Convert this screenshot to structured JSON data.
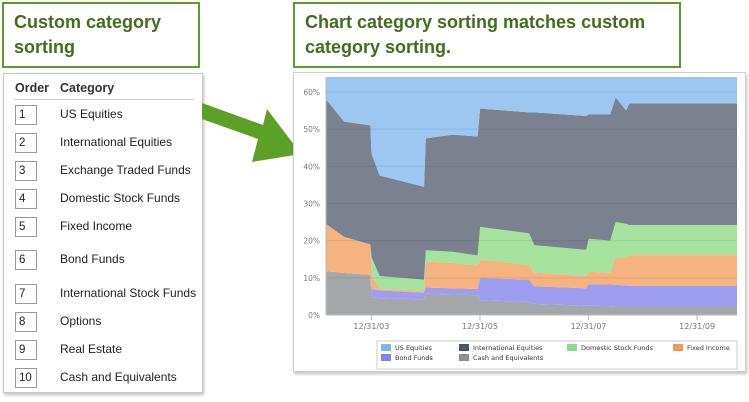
{
  "callouts": {
    "left": "Custom category sorting",
    "right": "Chart category sorting matches custom category sorting."
  },
  "table": {
    "headers": {
      "order": "Order",
      "category": "Category"
    },
    "rows": [
      {
        "order": "1",
        "category": "US Equities"
      },
      {
        "order": "2",
        "category": "International Equities"
      },
      {
        "order": "3",
        "category": "Exchange Traded Funds"
      },
      {
        "order": "4",
        "category": "Domestic Stock Funds"
      },
      {
        "order": "5",
        "category": "Fixed Income"
      },
      {
        "order": "6",
        "category": "Bond Funds"
      },
      {
        "order": "7",
        "category": "International Stock Funds"
      },
      {
        "order": "8",
        "category": "Options"
      },
      {
        "order": "9",
        "category": "Real Estate"
      },
      {
        "order": "10",
        "category": "Cash and Equivalents"
      }
    ]
  },
  "colors": {
    "accent_green": "#5b9b2b",
    "callout_text": "#3f6e1e"
  },
  "chart_data": {
    "type": "area",
    "stacked": true,
    "ylim": [
      0,
      64
    ],
    "yticks": [
      "0%",
      "10%",
      "20%",
      "30%",
      "40%",
      "50%",
      "60%"
    ],
    "ytick_values": [
      0,
      10,
      20,
      30,
      40,
      50,
      60
    ],
    "xlim": [
      "2003-03-01",
      "2010-09-25"
    ],
    "xticks": [
      "12/31/03",
      "12/31/05",
      "12/31/07",
      "12/31/09"
    ],
    "xtick_values": [
      "2003-12-31",
      "2005-12-31",
      "2007-12-31",
      "2009-12-31"
    ],
    "grid": true,
    "legend_position": "bottom",
    "x": [
      "2003-03-01",
      "2003-07-01",
      "2003-12-24",
      "2004-01-01",
      "2004-02-25",
      "2004-12-20",
      "2005-01-01",
      "2005-07-01",
      "2005-12-15",
      "2006-01-01",
      "2006-11-25",
      "2007-01-01",
      "2007-12-15",
      "2008-01-01",
      "2008-05-25",
      "2008-07-01",
      "2008-09-10",
      "2008-10-01",
      "2010-09-25"
    ],
    "series": [
      {
        "name": "Cash and Equivalents",
        "color": "#a5a8ab",
        "legend_color": "#8e9296",
        "values": [
          11.8,
          11.3,
          10.8,
          4.8,
          4.5,
          4.2,
          5.7,
          5.5,
          5.3,
          4.0,
          3.5,
          3.0,
          2.5,
          2.5,
          2.4,
          2.3,
          2.3,
          2.3,
          2.3
        ]
      },
      {
        "name": "Bond Funds",
        "color": "#9d9eef",
        "legend_color": "#8384e8",
        "values": [
          0,
          0,
          0,
          2.2,
          2.1,
          1.8,
          1.7,
          1.7,
          1.7,
          6.0,
          6.0,
          4.7,
          4.7,
          5.8,
          5.8,
          5.8,
          5.7,
          5.5,
          5.5
        ]
      },
      {
        "name": "Fixed Income",
        "color": "#f6b27f",
        "legend_color": "#f49b5a",
        "values": [
          12.7,
          9.7,
          8.2,
          3.9,
          0.4,
          0.6,
          7.0,
          6.8,
          6.3,
          4.9,
          4.0,
          3.7,
          3.3,
          3.4,
          3.1,
          7.5,
          7.3,
          8.3,
          8.3
        ]
      },
      {
        "name": "Domestic Stock Funds",
        "color": "#a6e39d",
        "legend_color": "#8fda84",
        "values": [
          0,
          0,
          0,
          4.7,
          3.5,
          2.9,
          3.0,
          3.0,
          2.7,
          8.8,
          8.5,
          7.4,
          7.0,
          8.8,
          8.7,
          9.4,
          9.2,
          8.1,
          8.1
        ]
      },
      {
        "name": "International Equities",
        "color": "#79828e",
        "legend_color": "#4a5463",
        "values": [
          33.5,
          31,
          32,
          27.8,
          27,
          25,
          30.1,
          31.5,
          32,
          31.8,
          32.5,
          35.7,
          36,
          33.5,
          34,
          33.5,
          30.5,
          32.7,
          32.7
        ]
      },
      {
        "name": "US Equities",
        "color": "#9dc6f0",
        "legend_color": "#80b5ec",
        "values": [
          6,
          12,
          13,
          20.6,
          26.5,
          29.5,
          16.5,
          15.5,
          16,
          8.5,
          9.5,
          9.5,
          10.5,
          10,
          10,
          5.5,
          9,
          7.1,
          7.1
        ]
      }
    ],
    "legend_order": [
      "US Equities",
      "International Equities",
      "Domestic Stock Funds",
      "Fixed Income",
      "Bond Funds",
      "Cash and Equivalents"
    ]
  }
}
